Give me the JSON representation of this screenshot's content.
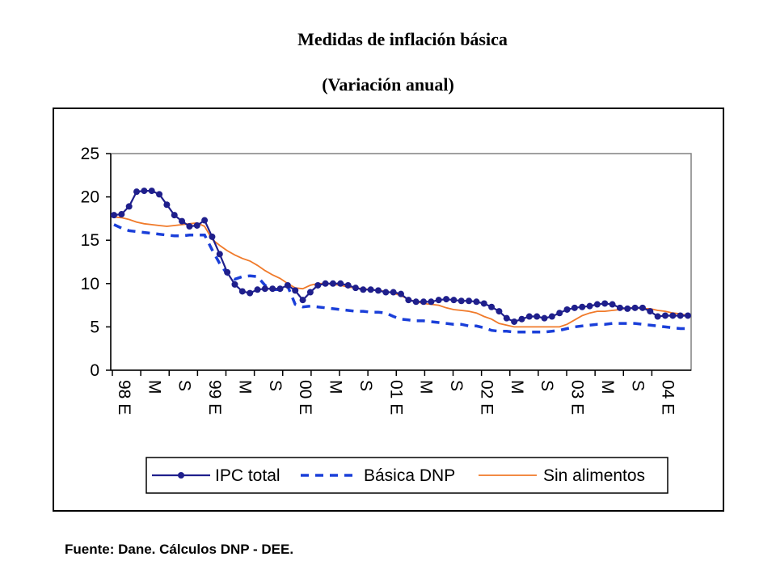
{
  "header": {
    "title": "Medidas de inflación básica",
    "subtitle": "(Variación anual)"
  },
  "footer": {
    "source": "Fuente: Dane. Cálculos DNP - DEE."
  },
  "chart_data": {
    "type": "line",
    "title": "Medidas de inflación básica",
    "subtitle": "(Variación anual)",
    "ylim": [
      0,
      25
    ],
    "yticks": [
      0,
      5,
      10,
      15,
      20,
      25
    ],
    "grid": false,
    "legend_position": "bottom",
    "x_start": "1998-01",
    "x_end": "2004-05",
    "x_tick_labels": [
      {
        "m": 0,
        "label": "98 E"
      },
      {
        "m": 4,
        "label": "M"
      },
      {
        "m": 8,
        "label": "S"
      },
      {
        "m": 12,
        "label": "99 E"
      },
      {
        "m": 16,
        "label": "M"
      },
      {
        "m": 20,
        "label": "S"
      },
      {
        "m": 24,
        "label": "00 E"
      },
      {
        "m": 28,
        "label": "M"
      },
      {
        "m": 32,
        "label": "S"
      },
      {
        "m": 36,
        "label": "01 E"
      },
      {
        "m": 40,
        "label": "M"
      },
      {
        "m": 44,
        "label": "S"
      },
      {
        "m": 48,
        "label": "02 E"
      },
      {
        "m": 52,
        "label": "M"
      },
      {
        "m": 56,
        "label": "S"
      },
      {
        "m": 60,
        "label": "03 E"
      },
      {
        "m": 64,
        "label": "M"
      },
      {
        "m": 68,
        "label": "S"
      },
      {
        "m": 72,
        "label": "04 E"
      }
    ],
    "series": [
      {
        "name": "IPC total",
        "color": "#1f1f8c",
        "style": "solid-markers",
        "values": [
          17.9,
          18.0,
          18.9,
          20.6,
          20.7,
          20.7,
          20.3,
          19.1,
          17.9,
          17.2,
          16.6,
          16.7,
          17.3,
          15.4,
          13.4,
          11.3,
          9.9,
          9.1,
          8.9,
          9.3,
          9.4,
          9.4,
          9.4,
          9.8,
          9.2,
          8.1,
          9.0,
          9.8,
          10.0,
          10.0,
          10.0,
          9.8,
          9.5,
          9.3,
          9.3,
          9.2,
          9.0,
          9.0,
          8.8,
          8.1,
          7.9,
          7.9,
          7.9,
          8.1,
          8.2,
          8.1,
          8.0,
          8.0,
          7.9,
          7.7,
          7.3,
          6.8,
          6.0,
          5.6,
          5.9,
          6.2,
          6.2,
          6.0,
          6.2,
          6.6,
          7.0,
          7.2,
          7.3,
          7.4,
          7.6,
          7.7,
          7.6,
          7.2,
          7.1,
          7.2,
          7.2,
          6.8,
          6.2,
          6.3,
          6.3,
          6.3,
          6.3
        ]
      },
      {
        "name": "Básica DNP",
        "color": "#1a3fd9",
        "style": "dashed",
        "values": [
          16.8,
          16.4,
          16.1,
          16.0,
          15.9,
          15.8,
          15.7,
          15.6,
          15.5,
          15.5,
          15.6,
          15.6,
          15.6,
          13.9,
          12.3,
          11.1,
          10.5,
          10.8,
          10.9,
          10.8,
          9.8,
          9.3,
          9.3,
          9.7,
          7.6,
          7.3,
          7.4,
          7.3,
          7.2,
          7.1,
          7.0,
          6.9,
          6.8,
          6.8,
          6.7,
          6.7,
          6.6,
          6.2,
          5.9,
          5.8,
          5.7,
          5.7,
          5.6,
          5.5,
          5.4,
          5.3,
          5.3,
          5.1,
          5.1,
          4.9,
          4.6,
          4.5,
          4.5,
          4.4,
          4.4,
          4.4,
          4.4,
          4.4,
          4.5,
          4.6,
          4.8,
          5.0,
          5.1,
          5.2,
          5.3,
          5.3,
          5.4,
          5.4,
          5.4,
          5.4,
          5.3,
          5.2,
          5.1,
          5.0,
          4.9,
          4.8,
          4.8
        ]
      },
      {
        "name": "Sin alimentos",
        "color": "#f07a2a",
        "style": "solid",
        "values": [
          17.7,
          17.6,
          17.4,
          17.1,
          16.9,
          16.8,
          16.7,
          16.6,
          16.7,
          16.8,
          16.9,
          17.0,
          16.6,
          15.1,
          14.4,
          13.8,
          13.3,
          12.9,
          12.6,
          12.1,
          11.5,
          11.0,
          10.6,
          10.0,
          9.5,
          9.4,
          9.8,
          10.0,
          10.0,
          9.9,
          9.8,
          9.6,
          9.5,
          9.4,
          9.3,
          9.2,
          9.1,
          8.9,
          8.6,
          8.2,
          7.9,
          7.7,
          7.6,
          7.5,
          7.2,
          7.0,
          6.9,
          6.8,
          6.6,
          6.2,
          5.9,
          5.4,
          5.2,
          5.0,
          5.0,
          5.0,
          5.0,
          5.0,
          5.0,
          5.0,
          5.3,
          5.8,
          6.3,
          6.6,
          6.8,
          6.8,
          6.9,
          7.0,
          7.2,
          7.2,
          7.1,
          7.1,
          6.9,
          6.8,
          6.6,
          6.5,
          6.3
        ]
      }
    ]
  }
}
